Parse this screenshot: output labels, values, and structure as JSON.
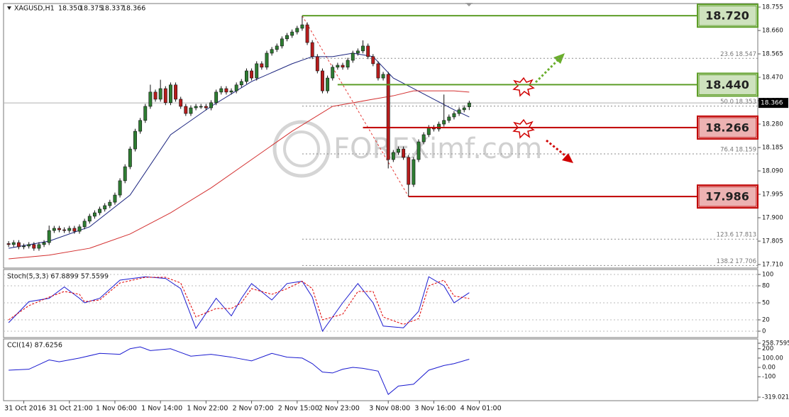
{
  "chart_data": [
    {
      "type": "candlestick",
      "title": "XAGUSD,H1",
      "ohlc_labels": [
        "18.350",
        "18.375",
        "18.337",
        "18.366"
      ],
      "xlim": [
        -1,
        148
      ],
      "xticks": [
        {
          "value": 3,
          "label": "31 Oct 2016"
        },
        {
          "value": 12,
          "label": "31 Oct 21:00"
        },
        {
          "value": 21,
          "label": "1 Nov 06:00"
        },
        {
          "value": 30,
          "label": "1 Nov 14:00"
        },
        {
          "value": 39,
          "label": "1 Nov 22:00"
        },
        {
          "value": 48,
          "label": "2 Nov 07:00"
        },
        {
          "value": 57,
          "label": "2 Nov 15:00"
        },
        {
          "value": 65,
          "label": "2 Nov 23:00"
        },
        {
          "value": 75,
          "label": "3 Nov 08:00"
        },
        {
          "value": 84,
          "label": "3 Nov 16:00"
        },
        {
          "value": 93,
          "label": "4 Nov 01:00"
        }
      ],
      "ylim": [
        17.71,
        18.755
      ],
      "yticks": [
        18.755,
        {
          "value": 18.66,
          "label": "18.660"
        },
        18.565,
        {
          "value": 18.47,
          "label": "18.470"
        },
        18.375,
        {
          "value": 18.28,
          "label": "18.280"
        },
        18.185,
        {
          "value": 18.09,
          "label": "18.090"
        },
        17.995,
        {
          "value": 17.9,
          "label": "17.900"
        },
        17.805,
        {
          "value": 17.71,
          "label": "17.710"
        }
      ],
      "current_price": {
        "value": 18.366,
        "label": "18.366"
      },
      "up_color": "#2e7d32",
      "down_color": "#b71c1c",
      "candles": [
        [
          17.795,
          17.805,
          17.781,
          17.791
        ],
        [
          17.791,
          17.809,
          17.781,
          17.799
        ],
        [
          17.799,
          17.809,
          17.772,
          17.782
        ],
        [
          17.782,
          17.795,
          17.772,
          17.785
        ],
        [
          17.785,
          17.801,
          17.775,
          17.791
        ],
        [
          17.791,
          17.801,
          17.766,
          17.776
        ],
        [
          17.776,
          17.801,
          17.766,
          17.791
        ],
        [
          17.791,
          17.809,
          17.781,
          17.799
        ],
        [
          17.799,
          17.868,
          17.789,
          17.848
        ],
        [
          17.848,
          17.867,
          17.838,
          17.857
        ],
        [
          17.857,
          17.867,
          17.841,
          17.851
        ],
        [
          17.851,
          17.861,
          17.838,
          17.848
        ],
        [
          17.848,
          17.867,
          17.838,
          17.857
        ],
        [
          17.857,
          17.867,
          17.835,
          17.845
        ],
        [
          17.845,
          17.873,
          17.835,
          17.863
        ],
        [
          17.863,
          17.896,
          17.853,
          17.886
        ],
        [
          17.886,
          17.916,
          17.876,
          17.906
        ],
        [
          17.906,
          17.93,
          17.896,
          17.92
        ],
        [
          17.92,
          17.945,
          17.91,
          17.935
        ],
        [
          17.935,
          17.959,
          17.925,
          17.949
        ],
        [
          17.949,
          17.973,
          17.939,
          17.963
        ],
        [
          17.963,
          18.002,
          17.953,
          17.992
        ],
        [
          17.992,
          18.06,
          17.982,
          18.05
        ],
        [
          18.05,
          18.117,
          18.04,
          18.107
        ],
        [
          18.107,
          18.189,
          18.097,
          18.179
        ],
        [
          18.179,
          18.261,
          18.169,
          18.251
        ],
        [
          18.251,
          18.305,
          18.241,
          18.295
        ],
        [
          18.295,
          18.362,
          18.285,
          18.352
        ],
        [
          18.352,
          18.44,
          18.342,
          18.41
        ],
        [
          18.41,
          18.42,
          18.371,
          18.381
        ],
        [
          18.381,
          18.46,
          18.371,
          18.424
        ],
        [
          18.424,
          18.434,
          18.357,
          18.367
        ],
        [
          18.367,
          18.449,
          18.357,
          18.439
        ],
        [
          18.439,
          18.449,
          18.371,
          18.381
        ],
        [
          18.381,
          18.391,
          18.342,
          18.352
        ],
        [
          18.352,
          18.362,
          18.313,
          18.323
        ],
        [
          18.323,
          18.356,
          18.313,
          18.346
        ],
        [
          18.346,
          18.362,
          18.336,
          18.352
        ],
        [
          18.352,
          18.362,
          18.342,
          18.352
        ],
        [
          18.352,
          18.362,
          18.336,
          18.346
        ],
        [
          18.346,
          18.377,
          18.336,
          18.367
        ],
        [
          18.367,
          18.42,
          18.357,
          18.41
        ],
        [
          18.41,
          18.434,
          18.4,
          18.424
        ],
        [
          18.424,
          18.434,
          18.4,
          18.41
        ],
        [
          18.41,
          18.425,
          18.4,
          18.415
        ],
        [
          18.415,
          18.449,
          18.405,
          18.439
        ],
        [
          18.439,
          18.463,
          18.429,
          18.453
        ],
        [
          18.453,
          18.506,
          18.443,
          18.496
        ],
        [
          18.496,
          18.506,
          18.457,
          18.467
        ],
        [
          18.467,
          18.535,
          18.457,
          18.525
        ],
        [
          18.525,
          18.535,
          18.501,
          18.511
        ],
        [
          18.511,
          18.578,
          18.501,
          18.568
        ],
        [
          18.568,
          18.593,
          18.558,
          18.583
        ],
        [
          18.583,
          18.607,
          18.573,
          18.597
        ],
        [
          18.597,
          18.636,
          18.587,
          18.626
        ],
        [
          18.626,
          18.65,
          18.616,
          18.64
        ],
        [
          18.64,
          18.664,
          18.63,
          18.654
        ],
        [
          18.654,
          18.679,
          18.644,
          18.669
        ],
        [
          18.669,
          18.72,
          18.659,
          18.683
        ],
        [
          18.683,
          18.693,
          18.601,
          18.611
        ],
        [
          18.611,
          18.621,
          18.544,
          18.554
        ],
        [
          18.554,
          18.564,
          18.486,
          18.496
        ],
        [
          18.496,
          18.506,
          18.405,
          18.415
        ],
        [
          18.415,
          18.477,
          18.405,
          18.467
        ],
        [
          18.467,
          18.521,
          18.457,
          18.511
        ],
        [
          18.511,
          18.529,
          18.501,
          18.519
        ],
        [
          18.519,
          18.529,
          18.501,
          18.511
        ],
        [
          18.511,
          18.549,
          18.501,
          18.539
        ],
        [
          18.539,
          18.578,
          18.529,
          18.568
        ],
        [
          18.568,
          18.587,
          18.558,
          18.577
        ],
        [
          18.577,
          18.62,
          18.567,
          18.597
        ],
        [
          18.597,
          18.607,
          18.544,
          18.554
        ],
        [
          18.554,
          18.564,
          18.515,
          18.525
        ],
        [
          18.525,
          18.535,
          18.457,
          18.467
        ],
        [
          18.467,
          18.492,
          18.457,
          18.482
        ],
        [
          18.482,
          18.492,
          18.1,
          18.136
        ],
        [
          18.136,
          18.175,
          18.126,
          18.165
        ],
        [
          18.165,
          18.189,
          18.155,
          18.179
        ],
        [
          18.179,
          18.189,
          18.135,
          18.145
        ],
        [
          18.145,
          18.155,
          17.986,
          18.035
        ],
        [
          18.035,
          18.146,
          18.025,
          18.136
        ],
        [
          18.136,
          18.218,
          18.126,
          18.208
        ],
        [
          18.208,
          18.247,
          18.198,
          18.237
        ],
        [
          18.237,
          18.276,
          18.227,
          18.266
        ],
        [
          18.266,
          18.276,
          18.25,
          18.26
        ],
        [
          18.26,
          18.29,
          18.25,
          18.28
        ],
        [
          18.28,
          18.4,
          18.27,
          18.295
        ],
        [
          18.295,
          18.319,
          18.285,
          18.309
        ],
        [
          18.309,
          18.333,
          18.299,
          18.323
        ],
        [
          18.323,
          18.348,
          18.313,
          18.338
        ],
        [
          18.338,
          18.356,
          18.328,
          18.346
        ],
        [
          18.35,
          18.375,
          18.337,
          18.366
        ]
      ],
      "moving_averages": [
        {
          "color": "#1a237e",
          "x": [
            0,
            8,
            16,
            24,
            32,
            40,
            48,
            56,
            60,
            64,
            68,
            72,
            76,
            80,
            84,
            88,
            91
          ],
          "values": [
            17.776,
            17.805,
            17.863,
            17.992,
            18.237,
            18.352,
            18.453,
            18.525,
            18.554,
            18.554,
            18.568,
            18.554,
            18.467,
            18.424,
            18.381,
            18.338,
            18.309
          ]
        },
        {
          "color": "#d32f2f",
          "x": [
            0,
            8,
            16,
            24,
            32,
            40,
            48,
            56,
            64,
            72,
            76,
            80,
            88,
            91
          ],
          "values": [
            17.733,
            17.748,
            17.776,
            17.834,
            17.92,
            18.021,
            18.136,
            18.251,
            18.352,
            18.381,
            18.395,
            18.415,
            18.415,
            18.41
          ]
        }
      ],
      "levels": [
        {
          "value": 18.72,
          "label": "18.720",
          "color": "#5e9e28",
          "start": 58
        },
        {
          "value": 18.44,
          "label": "18.440",
          "color": "#5e9e28",
          "start": 65
        },
        {
          "value": 18.266,
          "label": "18.266",
          "color": "#c00000",
          "start": 70
        },
        {
          "value": 17.986,
          "label": "17.986",
          "color": "#c00000",
          "start": 79
        }
      ],
      "fib_levels": [
        {
          "ratio": "23.6",
          "price": 18.547
        },
        {
          "ratio": "50.0",
          "price": 18.353
        },
        {
          "ratio": "76.4",
          "price": 18.159
        },
        {
          "ratio": "123.6",
          "price": 17.813
        },
        {
          "ratio": "138.2",
          "price": 17.706
        }
      ],
      "watermark": "FOREXimf.com"
    },
    {
      "type": "line",
      "title": "Stoch(5,3,3) 67.8899 57.5599",
      "ylim": [
        0,
        100
      ],
      "yticks": [
        100,
        80,
        50,
        20,
        0
      ],
      "series": [
        {
          "color": "#1a1ad0",
          "x": [
            0,
            4,
            8,
            11,
            14,
            15,
            18,
            22,
            27,
            31,
            34,
            37,
            41,
            44,
            46,
            48,
            52,
            55,
            58,
            60,
            62,
            66,
            69,
            72,
            74,
            78,
            81,
            83,
            86,
            88,
            91
          ],
          "values": [
            15,
            52,
            58,
            78,
            58,
            50,
            58,
            90,
            96,
            93,
            75,
            5,
            58,
            27,
            58,
            84,
            55,
            84,
            88,
            60,
            0,
            50,
            84,
            50,
            9,
            6,
            35,
            96,
            80,
            50,
            67.8899
          ]
        },
        {
          "color": "#e00000",
          "dashed": true,
          "x": [
            0,
            4,
            8,
            11,
            14,
            15,
            18,
            22,
            27,
            31,
            34,
            37,
            41,
            44,
            46,
            48,
            52,
            55,
            58,
            60,
            62,
            66,
            69,
            72,
            74,
            78,
            81,
            83,
            86,
            88,
            91
          ],
          "values": [
            20,
            45,
            60,
            70,
            65,
            52,
            55,
            85,
            95,
            95,
            85,
            25,
            40,
            40,
            50,
            75,
            65,
            75,
            88,
            75,
            20,
            30,
            70,
            70,
            25,
            12,
            22,
            80,
            90,
            62,
            57.5599
          ]
        }
      ]
    },
    {
      "type": "line",
      "title": "CCI(14) 87.6256",
      "ylim": [
        -319.0211,
        258.7595
      ],
      "yticks": [
        258.7595,
        200,
        {
          "value": 100,
          "label": "100.00"
        },
        {
          "value": 0,
          "label": "0.00"
        },
        -100,
        -319.0211
      ],
      "series": [
        {
          "color": "#1a1ad0",
          "x": [
            0,
            4,
            8,
            10,
            14,
            18,
            22,
            24,
            26,
            28,
            32,
            36,
            40,
            44,
            48,
            52,
            55,
            58,
            60,
            62,
            64,
            66,
            68,
            70,
            73,
            75,
            77,
            80,
            83,
            86,
            88,
            91
          ],
          "values": [
            -30,
            -20,
            80,
            60,
            100,
            150,
            140,
            200,
            220,
            180,
            200,
            120,
            140,
            110,
            70,
            150,
            110,
            100,
            40,
            -50,
            -60,
            -20,
            0,
            -10,
            -40,
            -290,
            -200,
            -180,
            -30,
            20,
            40,
            87.6256
          ]
        }
      ]
    }
  ]
}
